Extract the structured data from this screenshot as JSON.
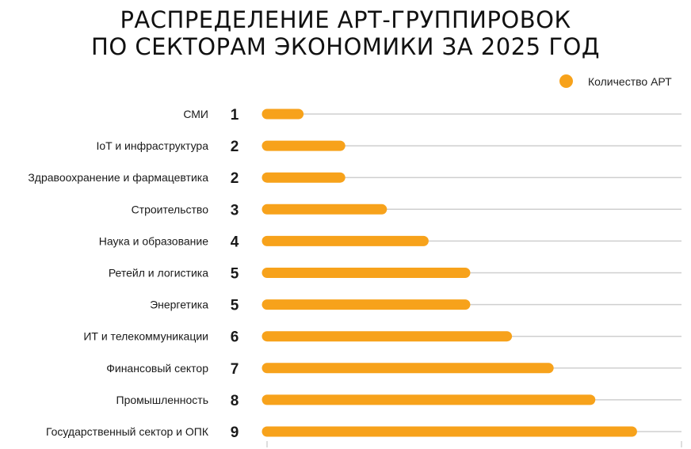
{
  "title_line1": "РАСПРЕДЕЛЕНИЕ АРТ-ГРУППИРОВОК",
  "title_line2": "ПО СЕКТОРАМ ЭКОНОМИКИ ЗА 2025 ГОД",
  "colors": {
    "bar": "#F7A21B",
    "track": "#CFCFCF",
    "text": "#1A1A1A"
  },
  "chart_data": {
    "type": "bar",
    "orientation": "horizontal",
    "title": "РАСПРЕДЕЛЕНИЕ АРТ-ГРУППИРОВОК ПО СЕКТОРАМ ЭКОНОМИКИ ЗА 2025 ГОД",
    "legend": {
      "position": "top-right",
      "entries": [
        "Количество АРТ"
      ]
    },
    "categories": [
      "СМИ",
      "IoT и инфраструктура",
      "Здравоохранение и фармацевтика",
      "Строительство",
      "Наука и образование",
      "Ретейл и логистика",
      "Энергетика",
      "ИТ и телекоммуникации",
      "Финансовый сектор",
      "Промышленность",
      "Государственный сектор и ОПК"
    ],
    "series": [
      {
        "name": "Количество АРТ",
        "values": [
          1,
          2,
          2,
          3,
          4,
          5,
          5,
          6,
          7,
          8,
          9
        ]
      }
    ],
    "xlim": [
      0,
      10
    ],
    "grid": false
  }
}
